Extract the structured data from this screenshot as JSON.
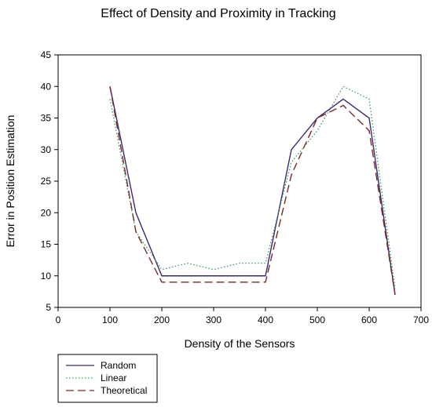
{
  "chart_data": {
    "type": "line",
    "title": "Effect of Density and Proximity in Tracking",
    "xlabel": "Density of the Sensors",
    "ylabel": "Error in Position Estimation",
    "xlim": [
      0,
      700
    ],
    "ylim": [
      5,
      45
    ],
    "xticks": [
      0,
      100,
      200,
      300,
      400,
      500,
      600,
      700
    ],
    "yticks": [
      5,
      10,
      15,
      20,
      25,
      30,
      35,
      40,
      45
    ],
    "grid": false,
    "legend_position": "bottom-left",
    "x": [
      100,
      150,
      200,
      250,
      300,
      350,
      400,
      450,
      500,
      550,
      600,
      650
    ],
    "series": [
      {
        "name": "Random",
        "color": "#3b2a6e",
        "style": "solid",
        "values": [
          40,
          20,
          10,
          10,
          10,
          10,
          10,
          30,
          35,
          38,
          35,
          7
        ]
      },
      {
        "name": "Linear",
        "color": "#3a9a5a",
        "style": "dotted",
        "values": [
          38,
          17,
          11,
          12,
          11,
          12,
          12,
          28,
          33,
          40,
          38,
          8
        ]
      },
      {
        "name": "Theoretical",
        "color": "#7a2a2a",
        "style": "dashed",
        "values": [
          40,
          17,
          9,
          9,
          9,
          9,
          9,
          26,
          35,
          37,
          33,
          7
        ]
      }
    ]
  }
}
